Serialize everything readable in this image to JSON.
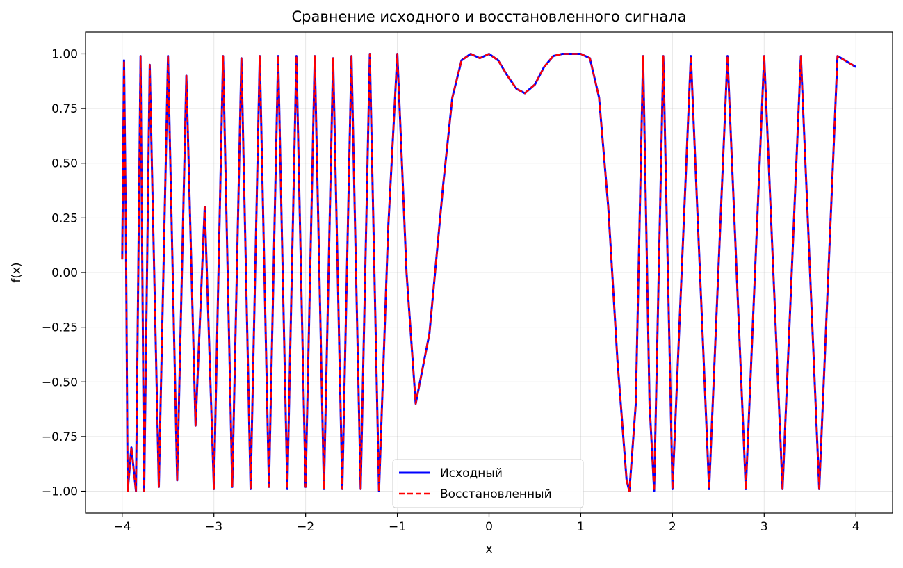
{
  "chart_data": {
    "type": "line",
    "title": "Сравнение исходного и восстановленного сигнала",
    "xlabel": "x",
    "ylabel": "f(x)",
    "xlim": [
      -4.4,
      4.4
    ],
    "ylim": [
      -1.1,
      1.1
    ],
    "xticks": [
      -4,
      -3,
      -2,
      -1,
      0,
      1,
      2,
      3,
      4
    ],
    "xtick_labels": [
      "−4",
      "−3",
      "−2",
      "−1",
      "0",
      "1",
      "2",
      "3",
      "4"
    ],
    "yticks": [
      1.0,
      0.75,
      0.5,
      0.25,
      0.0,
      -0.25,
      -0.5,
      -0.75,
      -1.0
    ],
    "ytick_labels": [
      "1.00",
      "0.75",
      "0.50",
      "0.25",
      "0.00",
      "−0.25",
      "−0.50",
      "−0.75",
      "−1.00"
    ],
    "grid": true,
    "legend_position": "lower-center",
    "x": [
      -4.0,
      -3.98,
      -3.96,
      -3.94,
      -3.9,
      -3.85,
      -3.8,
      -3.76,
      -3.7,
      -3.6,
      -3.5,
      -3.4,
      -3.3,
      -3.2,
      -3.1,
      -3.0,
      -2.9,
      -2.8,
      -2.7,
      -2.6,
      -2.5,
      -2.4,
      -2.3,
      -2.2,
      -2.1,
      -2.0,
      -1.9,
      -1.8,
      -1.7,
      -1.6,
      -1.5,
      -1.4,
      -1.3,
      -1.2,
      -1.1,
      -1.0,
      -0.9,
      -0.8,
      -0.65,
      -0.5,
      -0.4,
      -0.3,
      -0.2,
      -0.1,
      0.0,
      0.1,
      0.2,
      0.3,
      0.39,
      0.5,
      0.6,
      0.7,
      0.8,
      0.9,
      1.0,
      1.1,
      1.2,
      1.3,
      1.4,
      1.5,
      1.53,
      1.6,
      1.68,
      1.75,
      1.8,
      1.9,
      2.0,
      2.2,
      2.4,
      2.6,
      2.8,
      3.0,
      3.2,
      3.4,
      3.6,
      3.8,
      4.0
    ],
    "series": [
      {
        "name": "Исходный",
        "color": "#0000ff",
        "style": "solid",
        "values": [
          0.06,
          0.97,
          0.2,
          -1.0,
          -0.8,
          -1.0,
          0.99,
          -1.0,
          0.95,
          -0.98,
          0.99,
          -0.95,
          0.9,
          -0.7,
          0.3,
          -0.99,
          0.99,
          -0.98,
          0.98,
          -0.99,
          0.99,
          -0.98,
          0.99,
          -0.99,
          0.99,
          -0.98,
          0.99,
          -0.99,
          0.98,
          -0.99,
          0.99,
          -0.99,
          1.0,
          -1.0,
          0.2,
          1.0,
          0.0,
          -0.6,
          -0.28,
          0.4,
          0.8,
          0.97,
          1.0,
          0.98,
          1.0,
          0.97,
          0.9,
          0.84,
          0.82,
          0.86,
          0.94,
          0.99,
          1.0,
          1.0,
          1.0,
          0.98,
          0.8,
          0.3,
          -0.4,
          -0.95,
          -1.0,
          -0.6,
          0.99,
          -0.6,
          -1.0,
          0.99,
          -0.99,
          0.99,
          -0.99,
          0.99,
          -0.99,
          0.99,
          -0.99,
          0.99,
          -0.99,
          0.99,
          0.94
        ]
      },
      {
        "name": "Восстановленный",
        "color": "#ff0000",
        "style": "dashed",
        "values": [
          0.06,
          0.97,
          0.2,
          -1.0,
          -0.8,
          -1.0,
          0.99,
          -1.0,
          0.95,
          -0.98,
          0.99,
          -0.95,
          0.9,
          -0.7,
          0.3,
          -0.99,
          0.99,
          -0.98,
          0.98,
          -0.99,
          0.99,
          -0.98,
          0.99,
          -0.99,
          0.99,
          -0.98,
          0.99,
          -0.99,
          0.98,
          -0.99,
          0.99,
          -0.99,
          1.0,
          -1.0,
          0.2,
          1.0,
          0.0,
          -0.6,
          -0.28,
          0.4,
          0.8,
          0.97,
          1.0,
          0.98,
          1.0,
          0.97,
          0.9,
          0.84,
          0.82,
          0.86,
          0.94,
          0.99,
          1.0,
          1.0,
          1.0,
          0.98,
          0.8,
          0.3,
          -0.4,
          -0.95,
          -1.0,
          -0.6,
          0.99,
          -0.6,
          -1.0,
          0.99,
          -0.99,
          0.99,
          -0.99,
          0.99,
          -0.99,
          0.99,
          -0.99,
          0.99,
          -0.99,
          0.99,
          0.94
        ]
      }
    ]
  }
}
